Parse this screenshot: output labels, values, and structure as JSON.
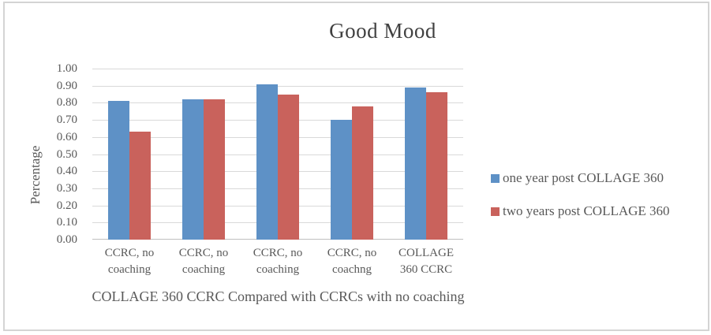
{
  "window": {
    "background": "#ffffff",
    "border_color": "#d4d4d4"
  },
  "chart_data": {
    "type": "bar",
    "title": "Good Mood",
    "xlabel": "COLLAGE 360 CCRC Compared with CCRCs with no coaching",
    "ylabel": "Percentage",
    "ylim": [
      0,
      1
    ],
    "grid": true,
    "legend_position": "right",
    "yticks": [
      "0.00",
      "0.10",
      "0.20",
      "0.30",
      "0.40",
      "0.50",
      "0.60",
      "0.70",
      "0.80",
      "0.90",
      "1.00"
    ],
    "categories": [
      "CCRC,  no\ncoaching",
      "CCRC, no\ncoaching",
      "CCRC, no\ncoaching",
      "CCRC, no\ncoachng",
      "COLLAGE\n360 CCRC"
    ],
    "series": [
      {
        "name": "one year post COLLAGE 360",
        "color": "#5e91c6",
        "values": [
          0.81,
          0.82,
          0.91,
          0.7,
          0.89
        ]
      },
      {
        "name": "two years post COLLAGE 360",
        "color": "#c9625c",
        "values": [
          0.63,
          0.82,
          0.85,
          0.78,
          0.86
        ]
      }
    ],
    "colors": {
      "gridline": "#d9d9d9",
      "axis_line": "#bfbfbf",
      "text": "#595959",
      "title": "#404040"
    }
  }
}
